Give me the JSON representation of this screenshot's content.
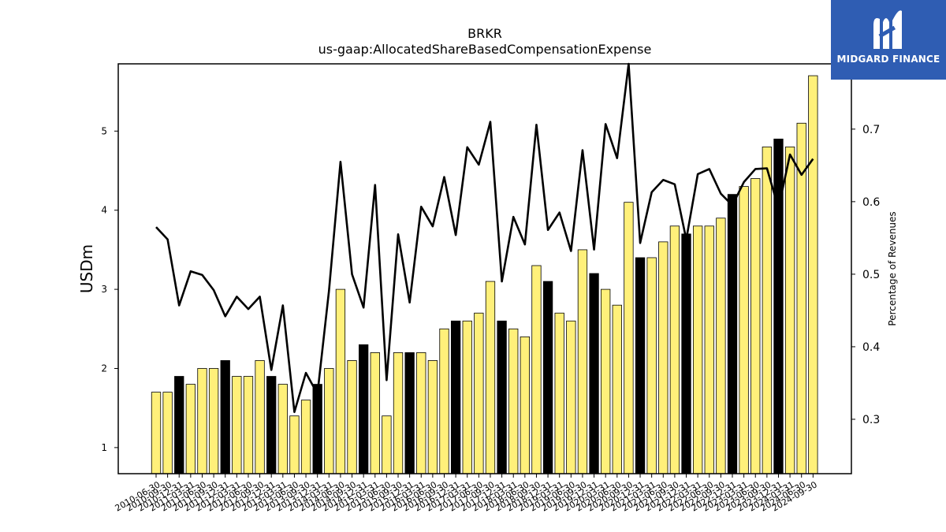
{
  "brand": {
    "name": "MIDGARD FINANCE",
    "icon": "midgard-logo-icon",
    "background": "#2f5db3"
  },
  "chart_data": {
    "type": "bar",
    "title": "BRKR",
    "subtitle": "us-gaap:AllocatedShareBasedCompensationExpense",
    "ylabel": "USDm",
    "y2label": "Percentage of Revenues",
    "ylim": [
      0.67,
      5.85
    ],
    "y2lim": [
      0.225,
      0.79
    ],
    "yticks": [
      1,
      2,
      3,
      4,
      5
    ],
    "y2ticks": [
      0.3,
      0.4,
      0.5,
      0.6,
      0.7
    ],
    "colors": {
      "bar_default": "#fff07a",
      "bar_q4": "#000000",
      "line": "#000000"
    },
    "categories": [
      "2010-06-30",
      "2010-09-30",
      "2010-12-31",
      "2011-03-31",
      "2011-06-30",
      "2011-09-30",
      "2011-12-31",
      "2012-03-31",
      "2012-06-30",
      "2012-09-30",
      "2012-12-31",
      "2013-03-31",
      "2013-06-30",
      "2013-09-30",
      "2013-12-31",
      "2014-03-31",
      "2014-06-30",
      "2014-09-30",
      "2014-12-31",
      "2015-03-31",
      "2015-06-30",
      "2015-09-30",
      "2015-12-31",
      "2016-03-31",
      "2016-06-30",
      "2016-09-30",
      "2016-12-31",
      "2017-03-31",
      "2017-06-30",
      "2017-09-30",
      "2017-12-31",
      "2018-03-31",
      "2018-06-30",
      "2018-09-30",
      "2018-12-31",
      "2019-03-31",
      "2019-06-30",
      "2019-09-30",
      "2019-12-31",
      "2020-03-31",
      "2020-06-30",
      "2020-09-30",
      "2020-12-31",
      "2021-03-31",
      "2021-06-30",
      "2021-09-30",
      "2021-12-31",
      "2022-03-31",
      "2022-06-30",
      "2022-09-30",
      "2022-12-31",
      "2023-03-31",
      "2023-06-30",
      "2023-09-30",
      "2023-12-31",
      "2024-03-31",
      "2024-06-30",
      "2024-09-30"
    ],
    "series": [
      {
        "type": "bar",
        "axis": "left",
        "values": [
          1.7,
          1.7,
          1.9,
          1.8,
          2.0,
          2.0,
          2.1,
          1.9,
          1.9,
          2.1,
          1.9,
          1.8,
          1.4,
          1.6,
          1.8,
          2.0,
          3.0,
          2.1,
          2.3,
          2.2,
          1.4,
          2.2,
          2.2,
          2.2,
          2.1,
          2.5,
          2.6,
          2.6,
          2.7,
          3.1,
          2.6,
          2.5,
          2.4,
          3.3,
          3.1,
          2.7,
          2.6,
          3.5,
          3.2,
          3.0,
          2.8,
          4.1,
          3.4,
          3.4,
          3.6,
          3.8,
          3.7,
          3.8,
          3.8,
          3.9,
          4.2,
          4.3,
          4.4,
          4.8,
          4.9,
          4.8,
          5.1,
          5.7
        ],
        "highlight": [
          false,
          false,
          true,
          false,
          false,
          false,
          true,
          false,
          false,
          false,
          true,
          false,
          false,
          false,
          true,
          false,
          false,
          false,
          true,
          false,
          false,
          false,
          true,
          false,
          false,
          false,
          true,
          false,
          false,
          false,
          true,
          false,
          false,
          false,
          true,
          false,
          false,
          false,
          true,
          false,
          false,
          false,
          true,
          false,
          false,
          false,
          true,
          false,
          false,
          false,
          true,
          false,
          false,
          false,
          true,
          false,
          false,
          false
        ]
      },
      {
        "type": "line",
        "axis": "right",
        "values": [
          0.565,
          0.548,
          0.457,
          0.504,
          0.499,
          0.478,
          0.442,
          0.469,
          0.452,
          0.469,
          0.368,
          0.457,
          0.31,
          0.364,
          0.335,
          0.477,
          0.655,
          0.5,
          0.454,
          0.623,
          0.354,
          0.555,
          0.461,
          0.593,
          0.566,
          0.634,
          0.554,
          0.675,
          0.651,
          0.71,
          0.49,
          0.579,
          0.541,
          0.706,
          0.561,
          0.585,
          0.532,
          0.671,
          0.534,
          0.707,
          0.66,
          0.79,
          0.543,
          0.613,
          0.63,
          0.624,
          0.548,
          0.638,
          0.645,
          0.611,
          0.595,
          0.627,
          0.645,
          0.646,
          0.591,
          0.665,
          0.637,
          0.659
        ]
      }
    ]
  }
}
